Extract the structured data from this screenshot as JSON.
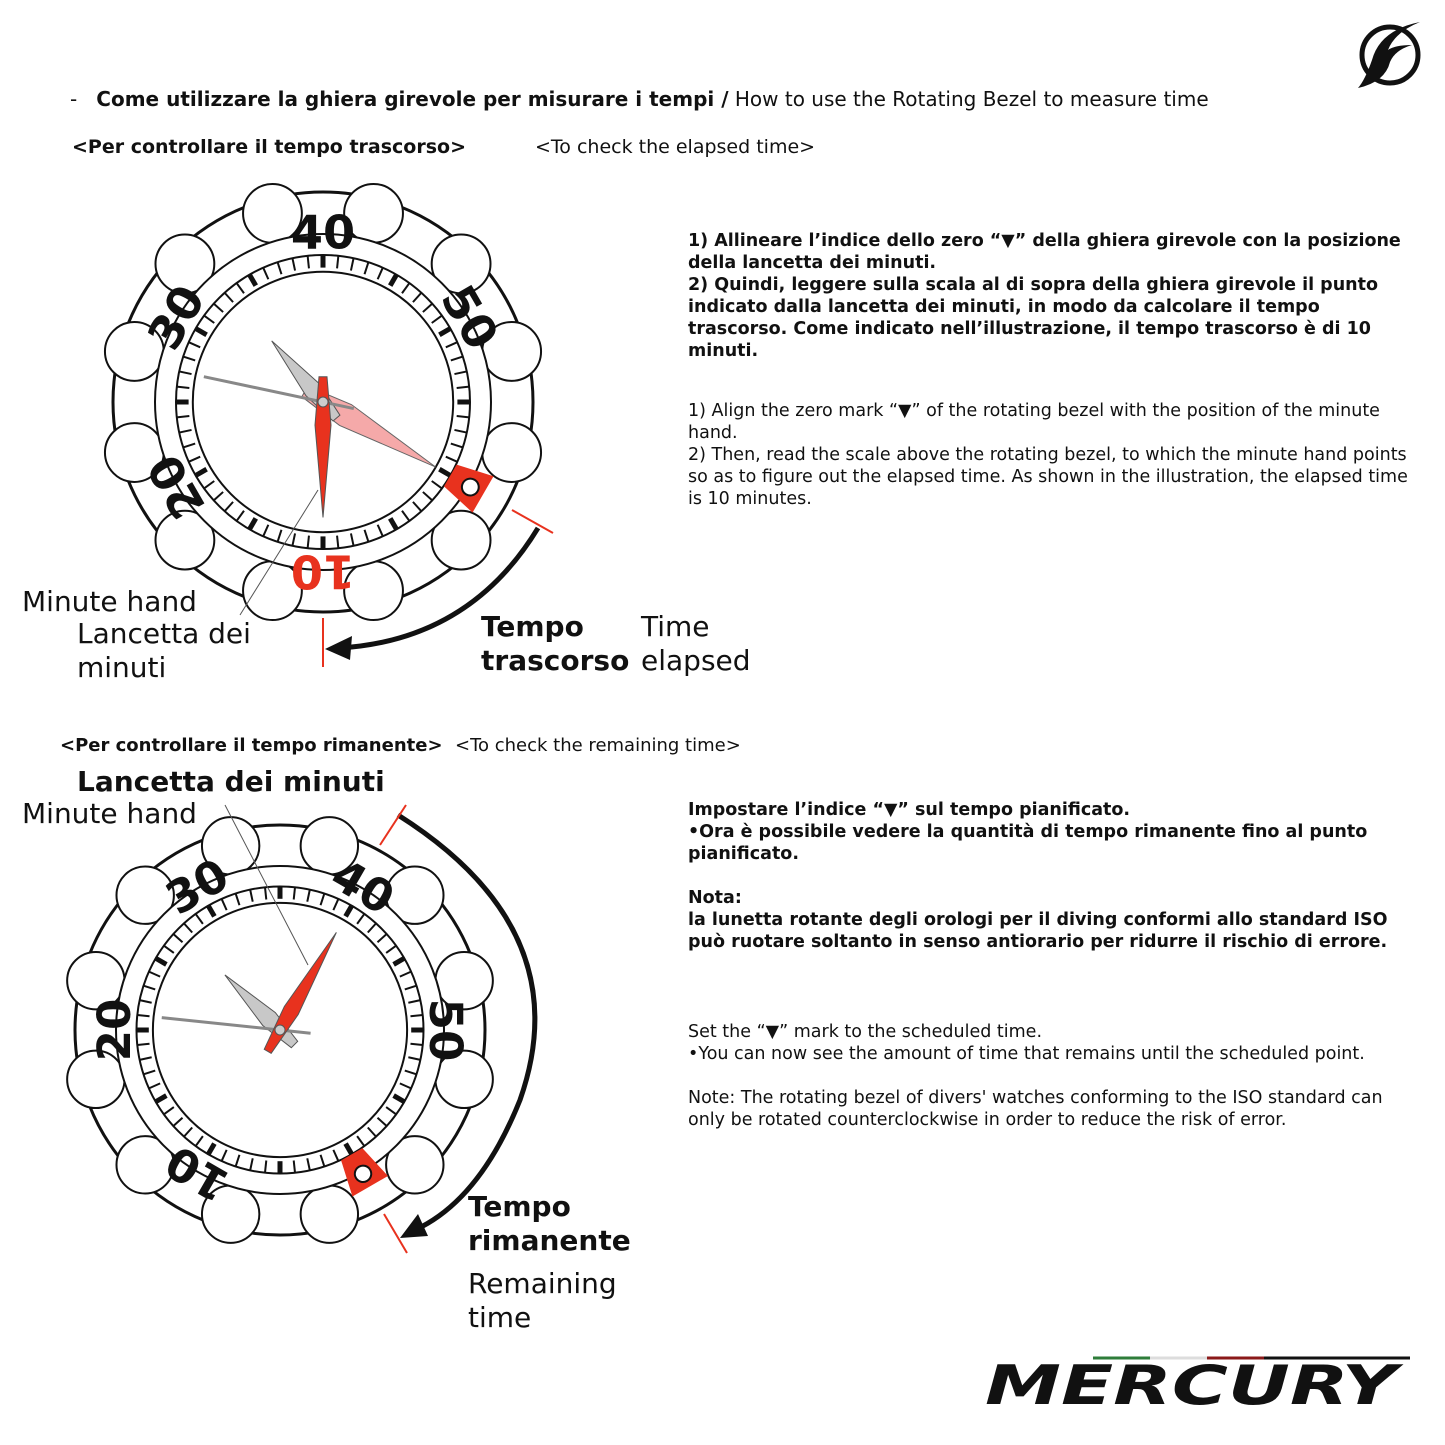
{
  "header": {
    "dash": "-",
    "title_it": "Come utilizzare la ghiera girevole per misurare i tempi /",
    "title_en": "How to use the Rotating Bezel to measure time"
  },
  "section1": {
    "heading_it": "<Per controllare il tempo trascorso>",
    "heading_en": "<To check the elapsed time>",
    "text_it": [
      "1) Allineare l’indice dello zero “▼” della ghiera girevole con la posizione della lancetta dei minuti.",
      "2) Quindi, leggere sulla scala al di sopra della ghiera girevole il punto indicato dalla lancetta dei minuti, in modo da calcolare il tempo trascorso. Come indicato nell’illustrazione, il tempo trascorso è di 10 minuti."
    ],
    "text_en": [
      "1) Align the zero mark “▼” of the rotating bezel with the position of the minute hand.",
      "2) Then, read the scale above the rotating bezel, to which the minute hand points so as to figure out the elapsed time. As shown in the illustration, the elapsed time is 10 minutes."
    ],
    "label_minute_en": "Minute hand",
    "label_minute_it_1": "Lancetta dei",
    "label_minute_it_2": "minuti",
    "label_elapsed_it_1": "Tempo",
    "label_elapsed_it_2": "trascorso",
    "label_elapsed_en_1": "Time",
    "label_elapsed_en_2": "elapsed",
    "bezel_numbers": [
      "10",
      "20",
      "30",
      "40",
      "50"
    ]
  },
  "section2": {
    "heading_it": "<Per controllare il tempo rimanente>",
    "heading_en": "<To check the remaining time>",
    "label_minute_it": "Lancetta dei minuti",
    "label_minute_en": "Minute hand",
    "text_it_1": "Impostare l’indice “▼” sul tempo pianificato.",
    "text_it_2": "•Ora è possibile vedere la quantità di tempo rimanente fino al punto pianificato.",
    "note_title_it": "Nota:",
    "note_it": "la lunetta rotante degli orologi per il diving conformi allo standard ISO può ruotare soltanto in senso antiorario per ridurre il rischio di errore.",
    "text_en_1": "Set the “▼” mark to the scheduled time.",
    "text_en_2": "•You can now see the amount of time that remains until the scheduled point.",
    "note_en": "Note: The rotating bezel of divers' watches conforming to the ISO standard can only be rotated counterclockwise in order to reduce the risk of error.",
    "label_remaining_it_1": "Tempo",
    "label_remaining_it_2": "rimanente",
    "label_remaining_en_1": "Remaining",
    "label_remaining_en_2": "time",
    "bezel_numbers": [
      "10",
      "20",
      "30",
      "40",
      "50"
    ]
  },
  "brand": {
    "logo_text": "MERCURY",
    "flag_colors": [
      "#2e7d3a",
      "#ffffff",
      "#8b1a1a"
    ]
  },
  "colors": {
    "accent_red": "#e8321e",
    "pink_hand": "#f4a0a0",
    "gray_hand": "#c8c8c8"
  }
}
